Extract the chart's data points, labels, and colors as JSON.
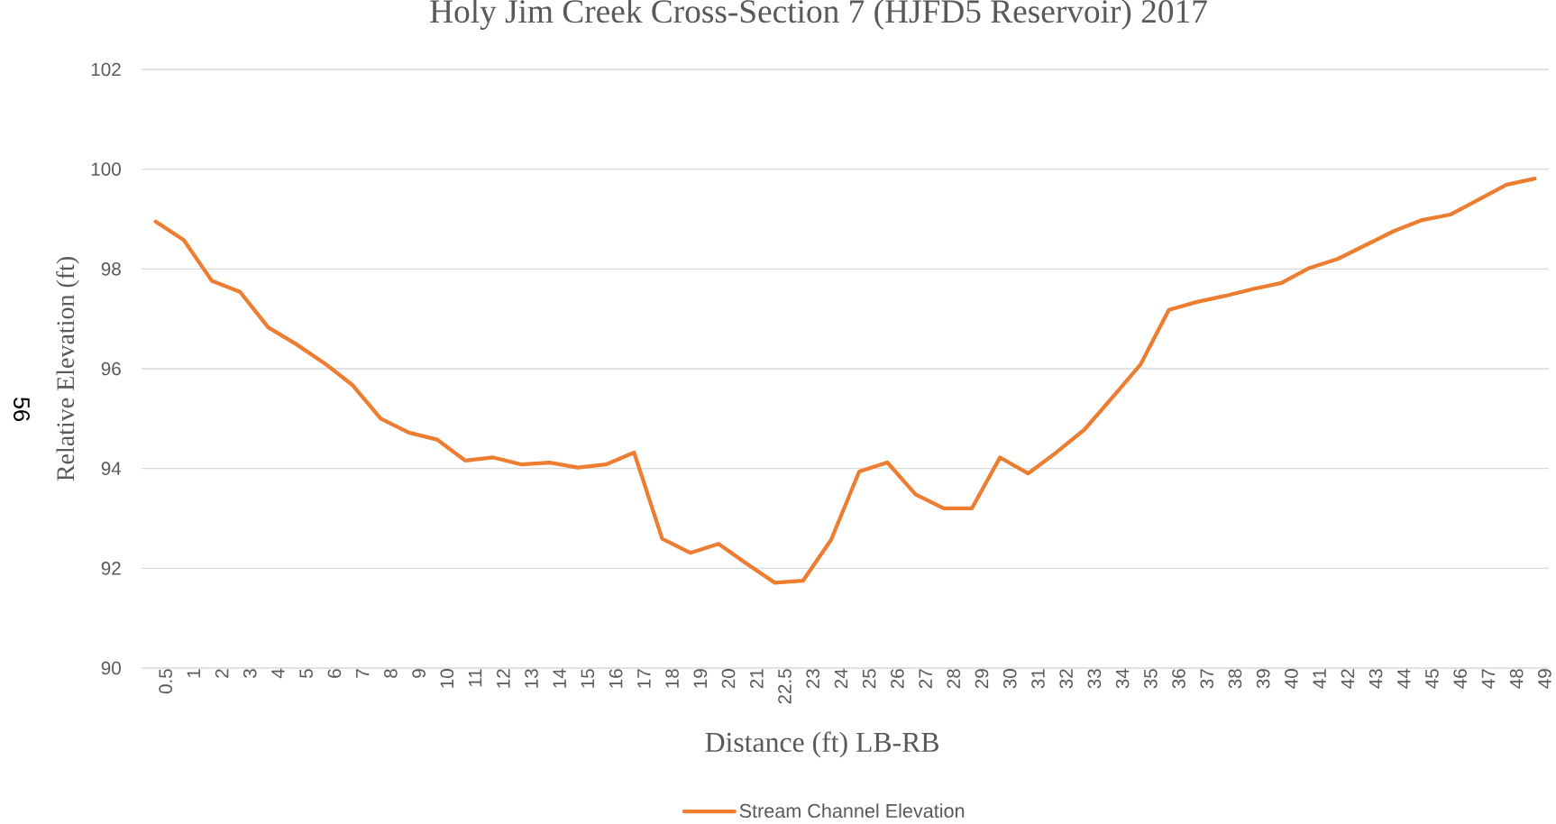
{
  "chart_data": {
    "type": "line",
    "title": "Holy Jim Creek Cross-Section 7 (HJFD5 Reservoir) 2017",
    "xlabel": "Distance (ft) LB-RB",
    "ylabel": "Relative Elevation (ft)",
    "categories": [
      "0.5",
      "1",
      "2",
      "3",
      "4",
      "5",
      "6",
      "7",
      "8",
      "9",
      "10",
      "11",
      "12",
      "13",
      "14",
      "15",
      "16",
      "17",
      "18",
      "19",
      "20",
      "21",
      "22.5",
      "23",
      "24",
      "25",
      "26",
      "27",
      "28",
      "29",
      "30",
      "31",
      "32",
      "33",
      "34",
      "35",
      "36",
      "37",
      "38",
      "39",
      "40",
      "41",
      "42",
      "43",
      "44",
      "45",
      "46",
      "47",
      "48",
      "49"
    ],
    "series": [
      {
        "name": "Stream Channel Elevation",
        "color": "#ed7d31",
        "values": [
          98.95,
          98.58,
          97.76,
          97.54,
          96.83,
          96.49,
          96.11,
          95.67,
          95.0,
          94.72,
          94.58,
          94.16,
          94.22,
          94.08,
          94.12,
          94.02,
          94.08,
          94.32,
          92.59,
          92.31,
          92.49,
          92.09,
          91.71,
          91.75,
          92.57,
          93.94,
          94.12,
          93.48,
          93.2,
          93.2,
          94.22,
          93.9,
          94.32,
          94.78,
          95.43,
          96.09,
          97.18,
          97.34,
          97.46,
          97.6,
          97.72,
          98.02,
          98.2,
          98.48,
          98.76,
          98.98,
          99.09,
          99.39,
          99.69,
          99.81
        ]
      }
    ],
    "ylim": [
      90,
      102
    ],
    "yticks": [
      90,
      92,
      94,
      96,
      98,
      100,
      102
    ],
    "grid": "y",
    "legend": "bottom",
    "annotations": [
      "56"
    ]
  }
}
